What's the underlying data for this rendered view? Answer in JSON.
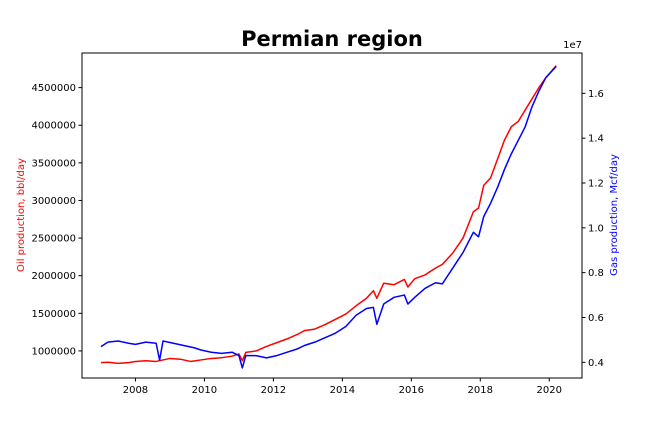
{
  "chart_data": {
    "type": "line",
    "title": "Permian region",
    "xlim": [
      2006.45,
      2020.95
    ],
    "x_ticks": [
      2008,
      2010,
      2012,
      2014,
      2016,
      2018,
      2020
    ],
    "x_tick_labels": [
      "2008",
      "2010",
      "2012",
      "2014",
      "2016",
      "2018",
      "2020"
    ],
    "left_axis": {
      "label": "Oil production, bbl/day",
      "color": "#ff0000",
      "ylim": [
        640000,
        4960000
      ],
      "ticks": [
        1000000,
        1500000,
        2000000,
        2500000,
        3000000,
        3500000,
        4000000,
        4500000
      ],
      "tick_labels": [
        "1000000",
        "1500000",
        "2000000",
        "2500000",
        "3000000",
        "3500000",
        "4000000",
        "4500000"
      ]
    },
    "right_axis": {
      "label": "Gas production, Mcf/day",
      "color": "#0000ff",
      "scale_label": "1e7",
      "ylim": [
        3300000,
        17800000
      ],
      "ticks": [
        4000000,
        6000000,
        8000000,
        10000000,
        12000000,
        14000000,
        16000000
      ],
      "tick_labels": [
        "0.4",
        "0.6",
        "0.8",
        "1.0",
        "1.2",
        "1.4",
        "1.6"
      ]
    },
    "series": [
      {
        "axis": "left",
        "color": "#ff0000",
        "points": [
          [
            2007.0,
            845000
          ],
          [
            2007.2,
            850000
          ],
          [
            2007.5,
            835000
          ],
          [
            2007.8,
            845000
          ],
          [
            2008.0,
            860000
          ],
          [
            2008.3,
            870000
          ],
          [
            2008.6,
            860000
          ],
          [
            2008.8,
            880000
          ],
          [
            2009.0,
            900000
          ],
          [
            2009.3,
            890000
          ],
          [
            2009.6,
            860000
          ],
          [
            2009.9,
            880000
          ],
          [
            2010.2,
            900000
          ],
          [
            2010.5,
            910000
          ],
          [
            2010.8,
            930000
          ],
          [
            2011.0,
            960000
          ],
          [
            2011.1,
            870000
          ],
          [
            2011.2,
            980000
          ],
          [
            2011.5,
            1000000
          ],
          [
            2011.8,
            1060000
          ],
          [
            2012.1,
            1110000
          ],
          [
            2012.4,
            1160000
          ],
          [
            2012.7,
            1220000
          ],
          [
            2012.9,
            1270000
          ],
          [
            2013.2,
            1290000
          ],
          [
            2013.5,
            1350000
          ],
          [
            2013.8,
            1420000
          ],
          [
            2014.1,
            1490000
          ],
          [
            2014.4,
            1600000
          ],
          [
            2014.7,
            1700000
          ],
          [
            2014.9,
            1800000
          ],
          [
            2015.0,
            1700000
          ],
          [
            2015.2,
            1900000
          ],
          [
            2015.5,
            1880000
          ],
          [
            2015.8,
            1950000
          ],
          [
            2015.9,
            1850000
          ],
          [
            2016.1,
            1960000
          ],
          [
            2016.4,
            2010000
          ],
          [
            2016.7,
            2100000
          ],
          [
            2016.9,
            2150000
          ],
          [
            2017.2,
            2300000
          ],
          [
            2017.5,
            2500000
          ],
          [
            2017.8,
            2850000
          ],
          [
            2017.95,
            2900000
          ],
          [
            2018.1,
            3200000
          ],
          [
            2018.3,
            3300000
          ],
          [
            2018.5,
            3550000
          ],
          [
            2018.7,
            3800000
          ],
          [
            2018.9,
            3980000
          ],
          [
            2019.1,
            4050000
          ],
          [
            2019.3,
            4200000
          ],
          [
            2019.5,
            4350000
          ],
          [
            2019.7,
            4500000
          ],
          [
            2019.9,
            4630000
          ],
          [
            2020.2,
            4790000
          ]
        ]
      },
      {
        "axis": "right",
        "color": "#0000ff",
        "points": [
          [
            2007.0,
            4700000
          ],
          [
            2007.2,
            4900000
          ],
          [
            2007.5,
            4950000
          ],
          [
            2007.8,
            4850000
          ],
          [
            2008.0,
            4800000
          ],
          [
            2008.3,
            4900000
          ],
          [
            2008.6,
            4850000
          ],
          [
            2008.7,
            4100000
          ],
          [
            2008.8,
            4950000
          ],
          [
            2009.1,
            4850000
          ],
          [
            2009.4,
            4750000
          ],
          [
            2009.7,
            4650000
          ],
          [
            2009.9,
            4550000
          ],
          [
            2010.2,
            4450000
          ],
          [
            2010.5,
            4400000
          ],
          [
            2010.8,
            4450000
          ],
          [
            2011.0,
            4300000
          ],
          [
            2011.1,
            3750000
          ],
          [
            2011.2,
            4300000
          ],
          [
            2011.5,
            4300000
          ],
          [
            2011.8,
            4200000
          ],
          [
            2012.1,
            4300000
          ],
          [
            2012.4,
            4450000
          ],
          [
            2012.7,
            4600000
          ],
          [
            2012.9,
            4750000
          ],
          [
            2013.2,
            4900000
          ],
          [
            2013.5,
            5100000
          ],
          [
            2013.8,
            5300000
          ],
          [
            2014.1,
            5600000
          ],
          [
            2014.4,
            6100000
          ],
          [
            2014.7,
            6400000
          ],
          [
            2014.9,
            6450000
          ],
          [
            2015.0,
            5700000
          ],
          [
            2015.2,
            6600000
          ],
          [
            2015.5,
            6900000
          ],
          [
            2015.8,
            7000000
          ],
          [
            2015.9,
            6600000
          ],
          [
            2016.1,
            6900000
          ],
          [
            2016.4,
            7300000
          ],
          [
            2016.7,
            7550000
          ],
          [
            2016.9,
            7500000
          ],
          [
            2017.2,
            8200000
          ],
          [
            2017.5,
            8900000
          ],
          [
            2017.8,
            9800000
          ],
          [
            2017.95,
            9600000
          ],
          [
            2018.1,
            10500000
          ],
          [
            2018.3,
            11100000
          ],
          [
            2018.5,
            11800000
          ],
          [
            2018.7,
            12600000
          ],
          [
            2018.9,
            13300000
          ],
          [
            2019.1,
            13900000
          ],
          [
            2019.3,
            14500000
          ],
          [
            2019.5,
            15400000
          ],
          [
            2019.7,
            16100000
          ],
          [
            2019.9,
            16700000
          ],
          [
            2020.2,
            17200000
          ]
        ]
      }
    ]
  }
}
